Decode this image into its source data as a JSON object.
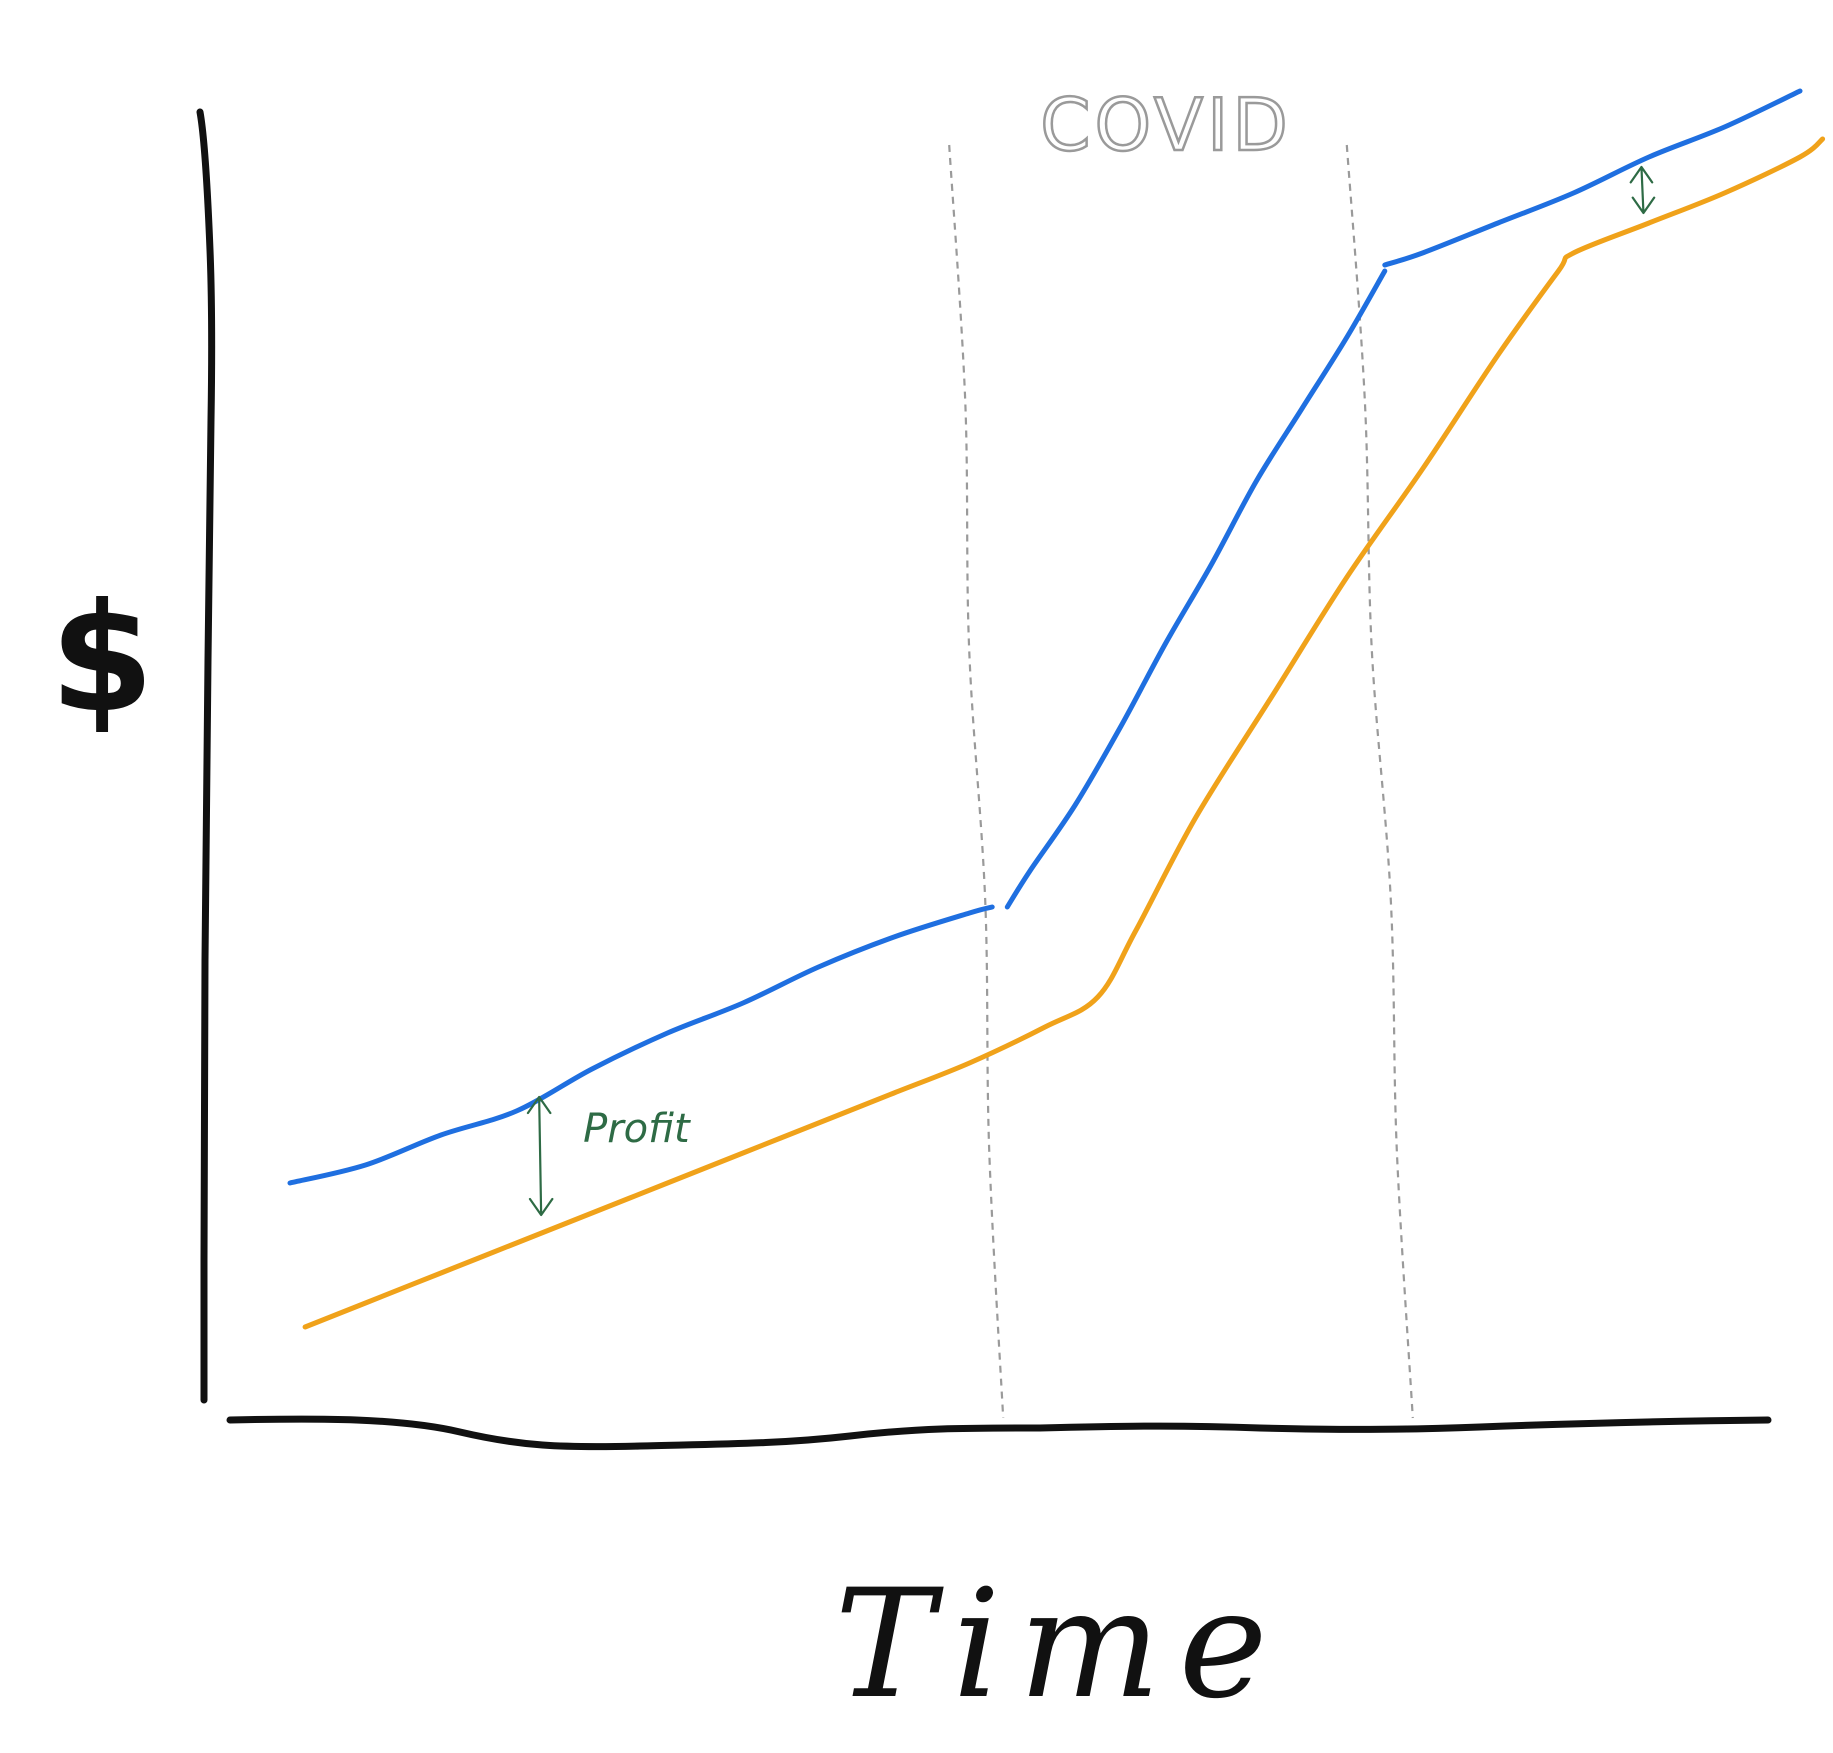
{
  "chart_data": {
    "type": "line",
    "title": "",
    "xlabel": "Time",
    "ylabel": "$",
    "xlim": [
      0,
      100
    ],
    "ylim": [
      0,
      100
    ],
    "axis_ticks": "none",
    "grid": false,
    "legend": "none",
    "series": [
      {
        "color": "#1f6fe0",
        "segments": [
          {
            "x": [
              0,
              5,
              10,
              15,
              20,
              25,
              30,
              35,
              40,
              45,
              46.5
            ],
            "y": [
              16,
              17.5,
              20,
              22,
              25.5,
              28.5,
              31,
              34,
              36.5,
              38.5,
              39
            ]
          },
          {
            "x": [
              47.5,
              49,
              52,
              55,
              58,
              61,
              64,
              67,
              70,
              72.5
            ],
            "y": [
              39,
              42,
              47.5,
              54,
              61,
              67.5,
              74.5,
              80.5,
              86.5,
              92
            ]
          },
          {
            "x": [
              72.5,
              75,
              80,
              85,
              90,
              95,
              100
            ],
            "y": [
              92.5,
              93.5,
              96,
              98.5,
              101.5,
              104,
              107
            ]
          }
        ]
      },
      {
        "color": "#f0a21a",
        "segments": [
          {
            "x": [
              1,
              5,
              10,
              15,
              20,
              25,
              30,
              35,
              40,
              45,
              50,
              53.5,
              56,
              60,
              65,
              70,
              75,
              80,
              84,
              85,
              90,
              95,
              100,
              101.5
            ],
            "y": [
              4,
              6,
              8.5,
              11,
              13.5,
              16,
              18.5,
              21,
              23.5,
              26,
              29,
              31.5,
              37,
              46.5,
              56.5,
              66.5,
              75.5,
              85,
              92,
              93.5,
              96,
              98.5,
              101.5,
              103
            ]
          }
        ]
      }
    ],
    "annotations": [
      {
        "text": "COVID",
        "type": "period",
        "x_start": 46.5,
        "x_end": 73.5
      },
      {
        "text": "Profit",
        "type": "gap-arrow",
        "x": 16.5,
        "y_top": 23.5,
        "y_bottom": 13
      },
      {
        "text": "",
        "type": "gap-arrow",
        "x": 89.5,
        "y_top": 101,
        "y_bottom": 96.5
      }
    ]
  },
  "style": {
    "axis_color": "#111111",
    "divider_color": "#9a9a9a",
    "annotation_color": "#2e6b45"
  }
}
